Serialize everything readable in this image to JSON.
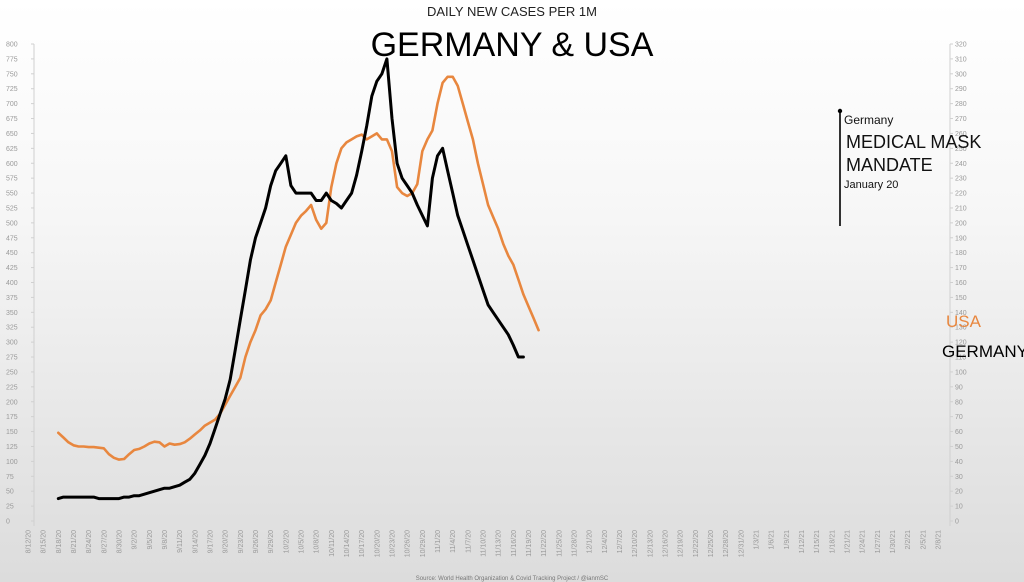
{
  "chart_data": {
    "type": "line",
    "subtitle": "DAILY NEW CASES PER 1M",
    "title": "GERMANY & USA",
    "source": "Source: World Health Organization & Covid Tracking Project / @ianmSC",
    "left_axis": {
      "min": 0,
      "max": 800,
      "step": 25,
      "ticks": [
        "0",
        "25",
        "50",
        "75",
        "100",
        "125",
        "150",
        "175",
        "200",
        "225",
        "250",
        "275",
        "300",
        "325",
        "350",
        "375",
        "400",
        "425",
        "450",
        "475",
        "500",
        "525",
        "550",
        "575",
        "600",
        "625",
        "650",
        "675",
        "700",
        "725",
        "750",
        "775",
        "800"
      ]
    },
    "right_axis": {
      "min": 0,
      "max": 320,
      "step": 10,
      "ticks": [
        "0",
        "10",
        "20",
        "30",
        "40",
        "50",
        "60",
        "70",
        "80",
        "90",
        "100",
        "110",
        "120",
        "130",
        "140",
        "150",
        "160",
        "170",
        "180",
        "190",
        "200",
        "210",
        "220",
        "230",
        "240",
        "250",
        "260",
        "270",
        "280",
        "290",
        "300",
        "310",
        "320"
      ]
    },
    "x_labels": [
      "8/12/20",
      "8/15/20",
      "8/18/20",
      "8/21/20",
      "8/24/20",
      "8/27/20",
      "8/30/20",
      "9/2/20",
      "9/5/20",
      "9/8/20",
      "9/11/20",
      "9/14/20",
      "9/17/20",
      "9/20/20",
      "9/23/20",
      "9/26/20",
      "9/29/20",
      "10/2/20",
      "10/5/20",
      "10/8/20",
      "10/11/20",
      "10/14/20",
      "10/17/20",
      "10/20/20",
      "10/23/20",
      "10/26/20",
      "10/29/20",
      "11/1/20",
      "11/4/20",
      "11/7/20",
      "11/10/20",
      "11/13/20",
      "11/16/20",
      "11/19/20",
      "11/22/20",
      "11/25/20",
      "11/28/20",
      "12/1/20",
      "12/4/20",
      "12/7/20",
      "12/10/20",
      "12/13/20",
      "12/16/20",
      "12/19/20",
      "12/22/20",
      "12/25/20",
      "12/28/20",
      "12/31/20",
      "1/3/21",
      "1/6/21",
      "1/9/21",
      "1/12/21",
      "1/15/21",
      "1/18/21",
      "1/21/21",
      "1/24/21",
      "1/27/21",
      "1/30/21",
      "2/2/21",
      "2/5/21",
      "2/8/21"
    ],
    "series": [
      {
        "name": "USA",
        "axis": "left",
        "color": "#e8873f",
        "start_day": 6,
        "values": [
          148,
          140,
          132,
          127,
          125,
          125,
          124,
          124,
          123,
          122,
          112,
          106,
          103,
          104,
          112,
          119,
          121,
          125,
          130,
          133,
          132,
          125,
          130,
          128,
          129,
          132,
          138,
          145,
          152,
          160,
          165,
          170,
          180,
          195,
          210,
          225,
          240,
          275,
          300,
          320,
          345,
          355,
          370,
          400,
          430,
          460,
          480,
          500,
          512,
          520,
          530,
          505,
          490,
          500,
          560,
          600,
          625,
          635,
          640,
          645,
          648,
          640,
          645,
          650,
          640,
          640,
          620,
          560,
          550,
          545,
          550,
          565,
          620,
          640,
          655,
          700,
          735,
          745,
          745,
          730,
          700,
          670,
          640,
          600,
          565,
          530,
          510,
          490,
          465,
          445,
          430,
          405,
          380,
          360,
          340,
          320
        ]
      },
      {
        "name": "GERMANY",
        "axis": "right",
        "color": "#000000",
        "start_day": 6,
        "values": [
          15,
          16,
          16,
          16,
          16,
          16,
          16,
          16,
          15,
          15,
          15,
          15,
          15,
          16,
          16,
          17,
          17,
          18,
          19,
          20,
          21,
          22,
          22,
          23,
          24,
          26,
          28,
          32,
          38,
          44,
          52,
          62,
          72,
          82,
          95,
          115,
          135,
          155,
          175,
          190,
          200,
          210,
          225,
          235,
          240,
          245,
          225,
          220,
          220,
          220,
          220,
          215,
          215,
          220,
          215,
          213,
          210,
          215,
          220,
          232,
          248,
          265,
          285,
          295,
          300,
          310,
          270,
          240,
          230,
          225,
          220,
          212,
          205,
          198,
          230,
          245,
          250,
          235,
          220,
          205,
          195,
          185,
          175,
          165,
          155,
          145,
          140,
          135,
          130,
          125,
          118,
          110,
          110
        ]
      }
    ],
    "annotation": {
      "country": "Germany",
      "line1": "MEDICAL MASK",
      "line2": "MANDATE",
      "date": "January 20"
    }
  }
}
